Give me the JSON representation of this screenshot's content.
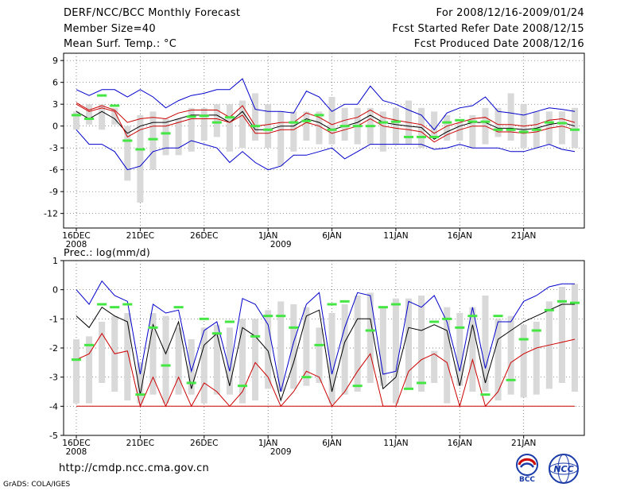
{
  "header": {
    "title": "DERF/NCC/BCC Monthly Forecast",
    "member_size": "Member Size=40",
    "variable": "Mean Surf. Temp.: °C",
    "period": "For 2008/12/16-2009/01/24",
    "started": "Fcst Started Refer Date 2008/12/15",
    "produced": "Fcst Produced Date 2008/12/16"
  },
  "footer": {
    "url": "http://cmdp.ncc.cma.gov.cn",
    "credit": "GrADS: COLA/IGES",
    "logo_left_text": "BCC",
    "logo_right_text": "NCC"
  },
  "colors": {
    "box": "#d9d9d9",
    "obs": "#44e644",
    "max": "#0000cc",
    "mean": "#000000",
    "min": "#cc0000",
    "grid": "#555555"
  },
  "chart_data": [
    {
      "type": "line",
      "title": "Mean Surf. Temp.: °C",
      "xlabel": "",
      "ylabel": "",
      "x_ticks": [
        "16DEC",
        "21DEC",
        "26DEC",
        "1JAN",
        "6JAN",
        "11JAN",
        "16JAN",
        "21JAN"
      ],
      "x_year_labels": [
        "2008",
        "2009"
      ],
      "y_ticks": [
        9,
        6,
        3,
        0,
        -3,
        -6,
        -9,
        -12
      ],
      "ylim": [
        -14,
        10
      ],
      "days": 40,
      "box": {
        "low": [
          -0.5,
          0.2,
          -0.5,
          0.2,
          -7.5,
          -10.5,
          -6,
          -4,
          -4,
          -3.5,
          -2,
          -1.5,
          -3.5,
          -3,
          -2,
          -3,
          -5.5,
          -3.5,
          -2,
          -2.5,
          -2.5,
          -2,
          -2.5,
          -2.5,
          -3.5,
          -2.5,
          -2.5,
          -3,
          -1.5,
          -2,
          -2,
          -3,
          -2.5,
          -1.5,
          -2,
          -3,
          -3,
          -2.5,
          -2.5,
          -3
        ],
        "high": [
          2,
          3,
          3,
          2.5,
          0,
          1.5,
          2,
          1,
          1,
          2.5,
          2.5,
          3,
          3,
          3.5,
          4.5,
          3,
          2,
          2,
          2,
          2,
          4,
          2.5,
          2.5,
          2.5,
          2,
          2.5,
          3.5,
          2.5,
          2,
          1.5,
          0.5,
          1.5,
          2.5,
          2.5,
          4.5,
          3,
          2,
          2,
          2,
          2.5
        ]
      },
      "series": [
        {
          "name": "max",
          "color": "#0000cc",
          "values": [
            5,
            4.2,
            5,
            5,
            4,
            5,
            4,
            2.5,
            3.5,
            4.2,
            4.5,
            5,
            5,
            6.5,
            2.3,
            2,
            2,
            1.8,
            4.8,
            4,
            2,
            3,
            3,
            5.5,
            3.5,
            3,
            2.2,
            1.5,
            -0.5,
            1.8,
            2.5,
            2.8,
            4,
            2,
            1.8,
            1.5,
            2,
            2.5,
            2.3,
            2
          ]
        },
        {
          "name": "mean",
          "color": "#000000",
          "values": [
            2,
            1,
            2,
            1,
            -1,
            0,
            0.5,
            0.5,
            1,
            1.5,
            1.5,
            1.5,
            0.5,
            2,
            -0.5,
            -0.5,
            0,
            0,
            1,
            0.5,
            -0.5,
            0,
            0.5,
            1.5,
            0.5,
            0.2,
            0,
            -0.2,
            -1.8,
            -0.8,
            0,
            0.5,
            0.5,
            -0.3,
            -0.3,
            -0.5,
            -0.3,
            0.2,
            0.5,
            0
          ]
        },
        {
          "name": "min",
          "color": "#cc0000",
          "values": [
            3,
            2,
            2.5,
            2,
            -1.5,
            -0.5,
            0,
            0,
            0.5,
            1,
            1,
            1,
            0.5,
            1.5,
            -1,
            -1,
            -0.5,
            -0.5,
            0.5,
            0,
            -1,
            -0.5,
            0,
            1,
            0,
            -0.3,
            -0.5,
            -0.8,
            -2.2,
            -1.2,
            -0.5,
            0,
            0,
            -0.8,
            -0.8,
            -1,
            -0.8,
            -0.3,
            0,
            -0.5
          ]
        },
        {
          "name": "mean_upper",
          "color": "#cc0000",
          "values": [
            3.2,
            2.2,
            2.8,
            2.2,
            0.5,
            1,
            1.2,
            1,
            1.8,
            2.2,
            2.2,
            2.2,
            1.2,
            2.8,
            0,
            0.2,
            0.5,
            0.5,
            1.8,
            1.2,
            0.2,
            0.8,
            1.2,
            2.2,
            1.2,
            0.8,
            0.5,
            0.2,
            -1,
            0,
            0.5,
            1,
            1.2,
            0.2,
            0.2,
            0,
            0.2,
            0.8,
            1,
            0.5
          ]
        },
        {
          "name": "lower",
          "color": "#0000cc",
          "values": [
            -0.5,
            -2.5,
            -2.5,
            -3.5,
            -6,
            -5.5,
            -3.5,
            -3,
            -3,
            -2,
            -2.5,
            -3,
            -5,
            -3.5,
            -5,
            -6,
            -5.5,
            -4,
            -4,
            -3.5,
            -3,
            -4.5,
            -3.5,
            -2.5,
            -2.5,
            -2.5,
            -2.5,
            -2.5,
            -3.2,
            -3,
            -2.5,
            -3,
            -3,
            -3,
            -3.5,
            -3.5,
            -3,
            -2.5,
            -3.2,
            -3.5
          ]
        }
      ],
      "obs": [
        1.5,
        1,
        4.2,
        2.8,
        -2,
        -3.2,
        -1.8,
        -1,
        null,
        1.3,
        1.4,
        0.5,
        1.2,
        null,
        0,
        -0.5,
        null,
        0.5,
        0.7,
        1.5,
        -0.5,
        0,
        0,
        0,
        0.5,
        0.6,
        -1.5,
        -1.5,
        -1.5,
        0.5,
        0.8,
        0.6,
        0.6,
        -0.5,
        -0.5,
        -0.8,
        -0.5,
        0.5,
        0.4,
        -0.5
      ]
    },
    {
      "type": "line",
      "title": "Prec.: log(mm/d)",
      "xlabel": "",
      "ylabel": "",
      "x_ticks": [
        "16DEC",
        "21DEC",
        "26DEC",
        "1JAN",
        "6JAN",
        "11JAN",
        "16JAN",
        "21JAN"
      ],
      "x_year_labels": [
        "2008",
        "2009"
      ],
      "y_ticks": [
        1,
        0,
        -1,
        -2,
        -3,
        -4,
        -5
      ],
      "ylim": [
        -5,
        1
      ],
      "days": 40,
      "box": {
        "low": [
          -3.9,
          -3.9,
          -3.2,
          -3.5,
          -3.8,
          -3.9,
          -3.6,
          -3.9,
          -3.6,
          -3.6,
          -3.9,
          -3.6,
          -3.6,
          -3.9,
          -3.8,
          -3.4,
          -3.5,
          -3.4,
          -3.3,
          -3.2,
          -3.9,
          -3.6,
          -3.5,
          -3.2,
          -3.3,
          -3.9,
          -3.4,
          -3.5,
          -3.2,
          -3.9,
          -3.3,
          -3.5,
          -3.5,
          -3.8,
          -3.6,
          -3.7,
          -3.6,
          -3.4,
          -3.2,
          -3.5
        ],
        "high": [
          -1.7,
          -1.6,
          -1.1,
          -0.9,
          -0.8,
          -2.5,
          -0.8,
          -0.9,
          -1.3,
          -1.7,
          -1.3,
          -1.2,
          -1.3,
          -1.0,
          -1.0,
          -0.7,
          -0.4,
          -0.5,
          -0.6,
          -1.3,
          -0.8,
          -0.5,
          -0.2,
          -0.1,
          -0.6,
          -0.3,
          -0.3,
          -0.2,
          -2.1,
          -0.6,
          -0.8,
          -0.6,
          -0.2,
          -1.0,
          -0.9,
          -1.2,
          -1.1,
          -0.4,
          0.1,
          0.2
        ]
      },
      "series": [
        {
          "name": "max",
          "color": "#0000cc",
          "values": [
            0,
            -0.5,
            0.3,
            -0.2,
            -0.4,
            -2.9,
            -0.5,
            -0.8,
            -0.7,
            -2.8,
            -1.4,
            -1.1,
            -2.8,
            -0.3,
            -0.5,
            -1.2,
            -3.5,
            -1.8,
            -0.5,
            -0.1,
            -2.9,
            -1.3,
            -0.1,
            -0.2,
            -2.9,
            -2.8,
            -0.4,
            -0.6,
            -0.2,
            -1.1,
            -2.8,
            -0.6,
            -2.7,
            -1.1,
            -1.1,
            -0.4,
            -0.2,
            0.1,
            0.2,
            0.2
          ]
        },
        {
          "name": "mean",
          "color": "#000000",
          "values": [
            -0.9,
            -1.3,
            -0.6,
            -0.9,
            -1.1,
            -3.6,
            -1.2,
            -2.2,
            -1.1,
            -3.4,
            -1.9,
            -1.5,
            -3.3,
            -1.3,
            -1.6,
            -2.1,
            -3.8,
            -2.5,
            -0.9,
            -0.7,
            -3.5,
            -1.8,
            -1.0,
            -1.0,
            -3.4,
            -3.0,
            -1.3,
            -1.4,
            -1.2,
            -1.4,
            -3.3,
            -1.2,
            -3.2,
            -1.7,
            -1.4,
            -1.1,
            -0.9,
            -0.7,
            -0.5,
            -0.5
          ]
        },
        {
          "name": "min",
          "color": "#cc0000",
          "values": [
            -2.4,
            -2.2,
            -1.5,
            -2.2,
            -2.1,
            -4.0,
            -3.0,
            -4.0,
            -3.0,
            -4.0,
            -3.2,
            -3.5,
            -4.0,
            -3.5,
            -2.5,
            -3.0,
            -4.0,
            -3.5,
            -2.8,
            -3.0,
            -4.0,
            -3.5,
            -2.8,
            -2.2,
            -4.0,
            -4.0,
            -2.8,
            -2.4,
            -2.2,
            -2.5,
            -4.0,
            -2.4,
            -4.0,
            -3.5,
            -2.5,
            -2.2,
            -2.0,
            -1.9,
            -1.8,
            -1.7
          ]
        },
        {
          "name": "floor",
          "color": "#cc0000",
          "values": [
            -4,
            -4,
            -4,
            -4,
            -4,
            -4,
            -4,
            -4,
            -4,
            -4,
            -4,
            -4,
            -4,
            -4,
            -4,
            -4,
            -4,
            -4,
            -4,
            -4,
            -4,
            -4,
            -4,
            -4,
            -4,
            -4,
            -4,
            -4,
            -4,
            -4,
            -4,
            -4,
            -4,
            -4,
            -4,
            -4,
            -4,
            -4,
            -4,
            -4
          ]
        }
      ],
      "obs": [
        -2.4,
        -1.9,
        -0.5,
        -0.6,
        -0.5,
        -3.6,
        -1.3,
        -2.6,
        -0.6,
        -3.2,
        -1.0,
        -1.5,
        -1.1,
        -3.3,
        -1.6,
        -0.9,
        -0.9,
        -1.3,
        -3.0,
        -1.9,
        -0.5,
        -0.4,
        -3.3,
        -1.4,
        -0.6,
        -0.5,
        -3.4,
        -3.2,
        -1.1,
        -1.0,
        -1.3,
        -0.9,
        -3.6,
        -0.9,
        -3.1,
        -1.7,
        -1.4,
        -0.7,
        -0.4,
        -0.45
      ]
    }
  ]
}
